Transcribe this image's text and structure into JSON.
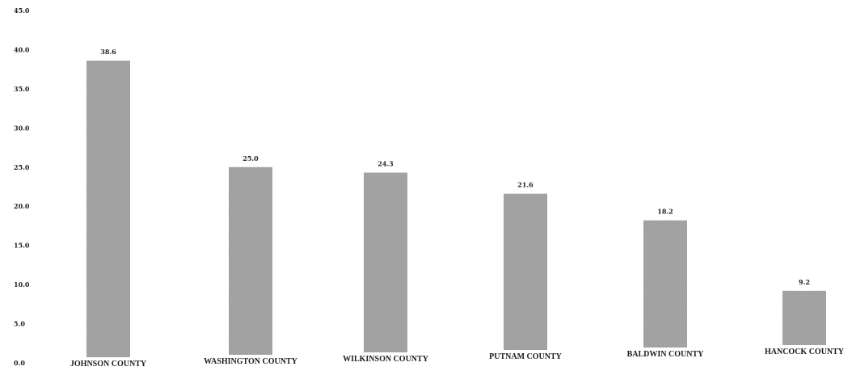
{
  "chart_data": {
    "type": "bar",
    "title": "",
    "xlabel": "",
    "ylabel": "",
    "categories": [
      "JOHNSON COUNTY",
      "WASHINGTON COUNTY",
      "WILKINSON COUNTY",
      "PUTNAM COUNTY",
      "BALDWIN COUNTY",
      "HANCOCK COUNTY"
    ],
    "values": [
      38.6,
      25.0,
      24.3,
      21.6,
      18.2,
      9.2
    ],
    "value_labels": [
      "38.6",
      "25.0",
      "24.3",
      "21.6",
      "18.2",
      "9.2"
    ],
    "ylim": [
      0,
      45
    ],
    "yticks": [
      0,
      5,
      10,
      15,
      20,
      25,
      30,
      35,
      40,
      45
    ],
    "ytick_labels": [
      "0.0",
      "5.0",
      "10.0",
      "15.0",
      "20.0",
      "25.0",
      "30.0",
      "35.0",
      "40.0",
      "45.0"
    ],
    "grid": false,
    "legend": "none",
    "bar_color": "#a9a9a9"
  }
}
